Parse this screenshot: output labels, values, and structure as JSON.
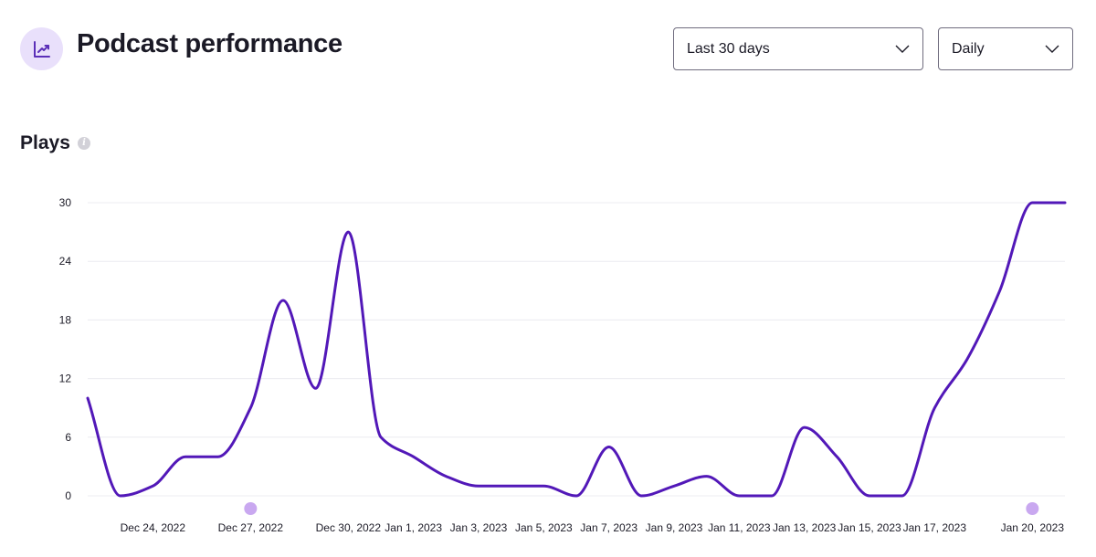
{
  "header": {
    "title": "Podcast performance",
    "icon": "trending-up-icon",
    "icon_bg": "#e9e0fb",
    "icon_color": "#5b2fb8"
  },
  "filters": {
    "range": {
      "selected": "Last 30 days"
    },
    "interval": {
      "selected": "Daily"
    }
  },
  "section": {
    "title": "Plays",
    "info_icon": "info-icon"
  },
  "chart_data": {
    "type": "line",
    "title": "",
    "xlabel": "",
    "ylabel": "",
    "ylim": [
      0,
      30
    ],
    "yticks": [
      0,
      6,
      12,
      18,
      24,
      30
    ],
    "grid": true,
    "line_color": "#5218b8",
    "marker_color": "#c9a8f0",
    "x": [
      "Dec 22, 2022",
      "Dec 23, 2022",
      "Dec 24, 2022",
      "Dec 25, 2022",
      "Dec 26, 2022",
      "Dec 27, 2022",
      "Dec 28, 2022",
      "Dec 29, 2022",
      "Dec 30, 2022",
      "Dec 31, 2022",
      "Jan 1, 2023",
      "Jan 2, 2023",
      "Jan 3, 2023",
      "Jan 4, 2023",
      "Jan 5, 2023",
      "Jan 6, 2023",
      "Jan 7, 2023",
      "Jan 8, 2023",
      "Jan 9, 2023",
      "Jan 10, 2023",
      "Jan 11, 2023",
      "Jan 12, 2023",
      "Jan 13, 2023",
      "Jan 14, 2023",
      "Jan 15, 2023",
      "Jan 16, 2023",
      "Jan 17, 2023",
      "Jan 18, 2023",
      "Jan 19, 2023",
      "Jan 20, 2023",
      "Jan 21, 2023"
    ],
    "series": [
      {
        "values": [
          10,
          0,
          1,
          4,
          4,
          9,
          20,
          11,
          27,
          6,
          4,
          2,
          1,
          1,
          1,
          0,
          5,
          0,
          1,
          2,
          0,
          0,
          7,
          4,
          0,
          0,
          9,
          14,
          21,
          30,
          30
        ]
      }
    ],
    "xticks": [
      "Dec 24, 2022",
      "Dec 27, 2022",
      "Dec 30, 2022",
      "Jan 1, 2023",
      "Jan 3, 2023",
      "Jan 5, 2023",
      "Jan 7, 2023",
      "Jan 9, 2023",
      "Jan 11, 2023",
      "Jan 13, 2023",
      "Jan 15, 2023",
      "Jan 17, 2023",
      "Jan 20, 2023"
    ],
    "markers": [
      "Dec 27, 2022",
      "Jan 20, 2023"
    ]
  }
}
